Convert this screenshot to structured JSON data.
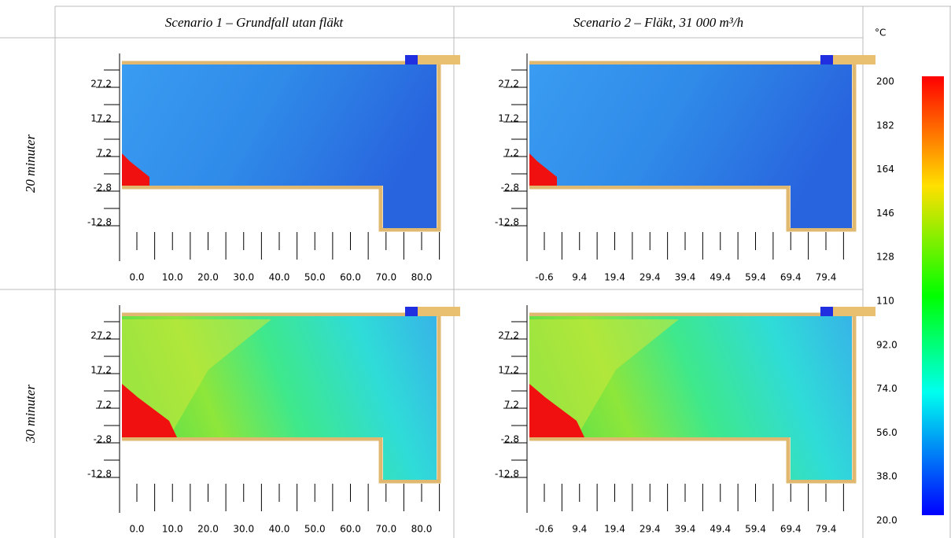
{
  "header": {
    "columns": [
      "Scenario 1 – Grundfall utan fläkt",
      "Scenario 2 – Fläkt, 31 000 m³/h"
    ],
    "unit": "°C"
  },
  "rows": [
    {
      "label": "20 minuter",
      "panels": [
        {
          "y_ticks": [
            "27.2",
            "17.2",
            "7.2",
            "-2.8",
            "-12.8"
          ],
          "x_ticks": [
            "0.0",
            "10.0",
            "20.0",
            "30.0",
            "40.0",
            "50.0",
            "60.0",
            "70.0",
            "80.0"
          ]
        },
        {
          "y_ticks": [
            "27.2",
            "17.2",
            "7.2",
            "-2.8",
            "-12.8"
          ],
          "x_ticks": [
            "-0.6",
            "9.4",
            "19.4",
            "29.4",
            "39.4",
            "49.4",
            "59.4",
            "69.4",
            "79.4"
          ]
        }
      ]
    },
    {
      "label": "30 minuter",
      "panels": [
        {
          "y_ticks": [
            "27.2",
            "17.2",
            "7.2",
            "-2.8",
            "-12.8"
          ],
          "x_ticks": [
            "0.0",
            "10.0",
            "20.0",
            "30.0",
            "40.0",
            "50.0",
            "60.0",
            "70.0",
            "80.0"
          ]
        },
        {
          "y_ticks": [
            "27.2",
            "17.2",
            "7.2",
            "-2.8",
            "-12.8"
          ],
          "x_ticks": [
            "-0.6",
            "9.4",
            "19.4",
            "29.4",
            "39.4",
            "49.4",
            "59.4",
            "69.4",
            "79.4"
          ]
        }
      ]
    }
  ],
  "colorbar": {
    "ticks": [
      "200",
      "182",
      "164",
      "146",
      "128",
      "110",
      "92.0",
      "74.0",
      "56.0",
      "38.0",
      "20.0"
    ]
  }
}
